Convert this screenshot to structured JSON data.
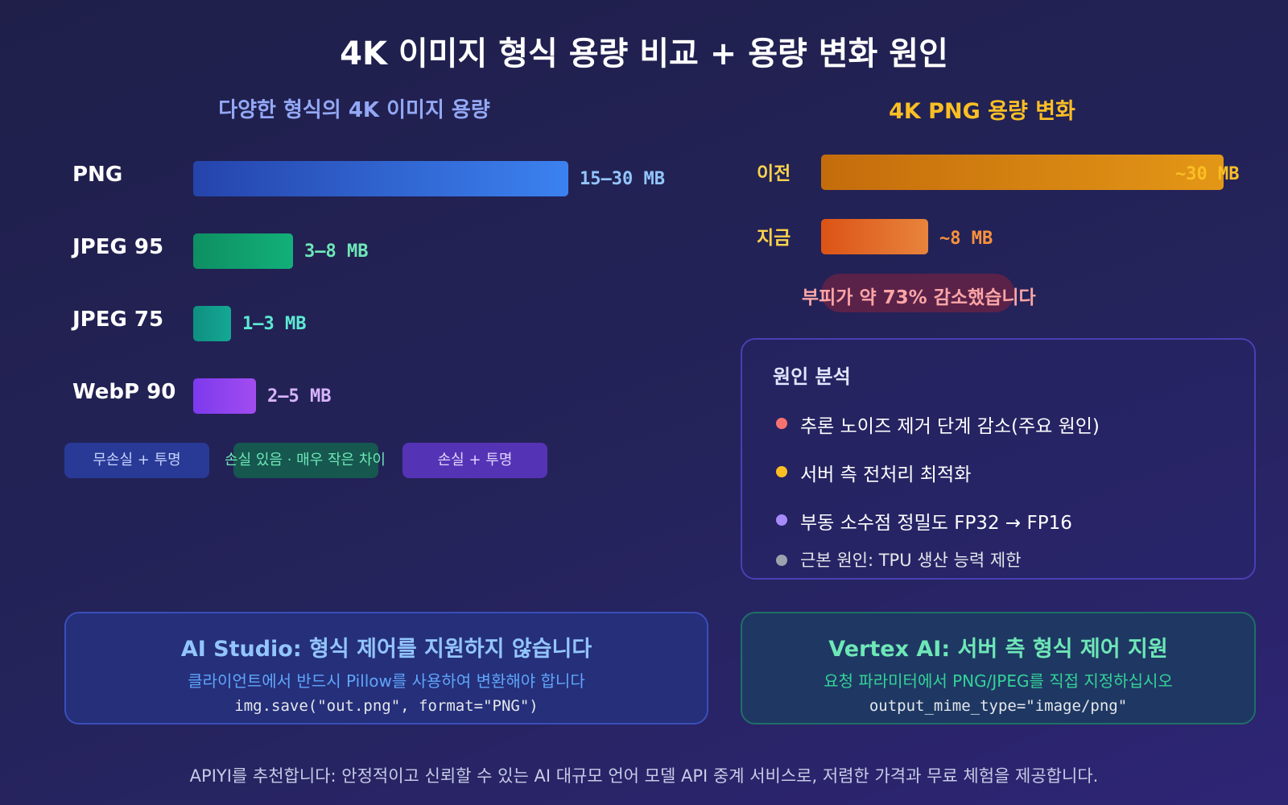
{
  "title": "4K 이미지 형식 용량 비교 + 용량 변화 원인",
  "chart_data": [
    {
      "type": "bar",
      "title": "다양한 형식의 4K 이미지 용량",
      "categories": [
        "PNG",
        "JPEG 95",
        "JPEG 75",
        "WebP 90"
      ],
      "ranges_mb": [
        [
          15,
          30
        ],
        [
          3,
          8
        ],
        [
          1,
          3
        ],
        [
          2,
          5
        ]
      ],
      "value_labels": [
        "15–30 MB",
        "3–8 MB",
        "1–3 MB",
        "2–5 MB"
      ],
      "colors": [
        "#3b82f6",
        "#10b981",
        "#14b8a6",
        "#a855f7"
      ]
    },
    {
      "type": "bar",
      "title": "4K PNG 용량 변화",
      "categories": [
        "이전",
        "지금"
      ],
      "values_mb": [
        30,
        8
      ],
      "value_labels": [
        "~30 MB",
        "~8 MB"
      ],
      "colors": [
        "#f59e0b",
        "#f97316"
      ]
    }
  ],
  "chips": [
    "무손실 + 투명",
    "손실 있음 · 매우 작은 차이",
    "손실 + 투명"
  ],
  "reduction_note": "부피가 약 73% 감소했습니다",
  "causes": {
    "heading": "원인 분석",
    "items": [
      {
        "text": "추론 노이즈 제거 단계 감소(주요 원인)",
        "color": "#f87171"
      },
      {
        "text": "서버 측 전처리 최적화",
        "color": "#fbbf24"
      },
      {
        "text": "부동 소수점 정밀도 FP32 → FP16",
        "color": "#a78bfa"
      },
      {
        "text": "근본 원인: TPU 생산 능력 제한",
        "color": "#9ca3af"
      }
    ]
  },
  "ai_studio": {
    "heading": "AI Studio: 형식 제어를 지원하지 않습니다",
    "desc": "클라이언트에서 반드시 Pillow를 사용하여 변환해야 합니다",
    "code": "img.save(\"out.png\", format=\"PNG\")"
  },
  "vertex": {
    "heading": "Vertex AI: 서버 측 형식 제어 지원",
    "desc": "요청 파라미터에서 PNG/JPEG를 직접 지정하십시오",
    "code": "output_mime_type=\"image/png\""
  },
  "footer": "APIYI를 추천합니다: 안정적이고 신뢰할 수 있는 AI 대규모 언어 모델 API 중계 서비스로, 저렴한 가격과 무료 체험을 제공합니다."
}
